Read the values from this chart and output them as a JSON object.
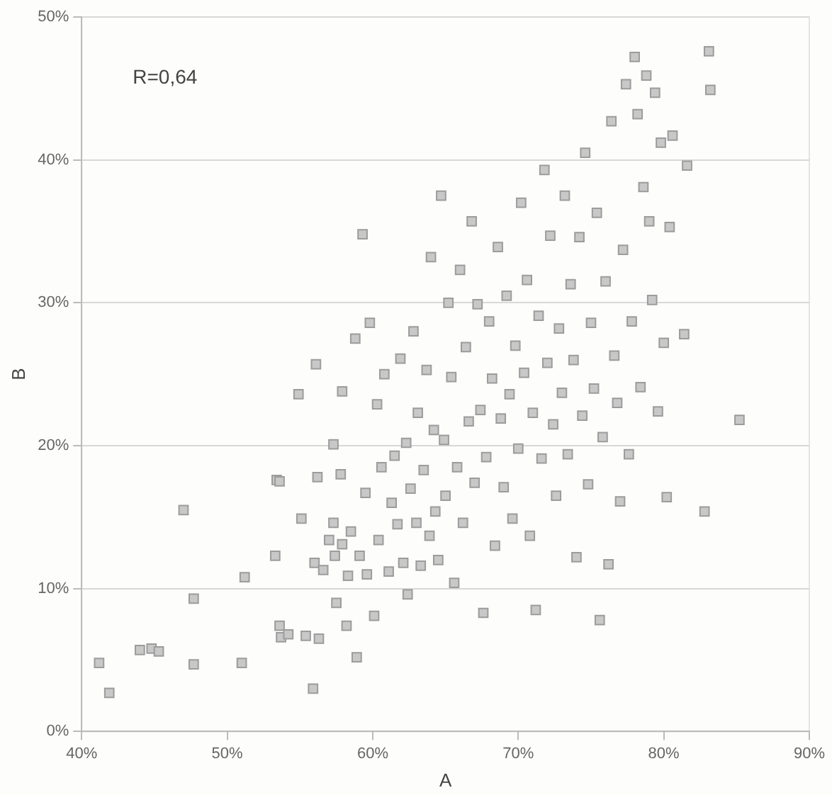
{
  "chart_data": {
    "type": "scatter",
    "xlabel": "A",
    "ylabel": "B",
    "annotations": [
      "R=0,64"
    ],
    "marker": "square",
    "grid": "y",
    "legend": false,
    "xlim": [
      40,
      90
    ],
    "xticks": [
      {
        "value": 40,
        "label": "40%"
      },
      {
        "value": 50,
        "label": "50%"
      },
      {
        "value": 60,
        "label": "60%"
      },
      {
        "value": 70,
        "label": "70%"
      },
      {
        "value": 80,
        "label": "80%"
      },
      {
        "value": 90,
        "label": "90%"
      }
    ],
    "ylim": [
      0,
      50
    ],
    "yticks": [
      {
        "value": 0,
        "label": "0%"
      },
      {
        "value": 10,
        "label": "10%"
      },
      {
        "value": 20,
        "label": "20%"
      },
      {
        "value": 30,
        "label": "30%"
      },
      {
        "value": 40,
        "label": "40%"
      },
      {
        "value": 50,
        "label": "50%"
      }
    ],
    "series": [
      {
        "color": "#c8c8c8",
        "x": [
          41.2,
          41.9,
          44.0,
          44.8,
          45.3,
          47.0,
          47.7,
          47.7,
          51.0,
          51.2,
          53.3,
          53.4,
          53.6,
          53.6,
          53.7,
          54.2,
          54.9,
          55.1,
          55.4,
          55.9,
          56.0,
          56.1,
          56.2,
          56.3,
          56.6,
          57.0,
          57.3,
          57.3,
          57.4,
          57.5,
          57.8,
          57.9,
          57.9,
          58.2,
          58.3,
          58.5,
          58.8,
          58.9,
          59.1,
          59.3,
          59.5,
          59.6,
          59.8,
          60.1,
          60.3,
          60.4,
          60.6,
          60.8,
          61.1,
          61.3,
          61.5,
          61.7,
          61.9,
          62.1,
          62.3,
          62.4,
          62.6,
          62.8,
          63.0,
          63.1,
          63.3,
          63.5,
          63.7,
          63.9,
          64.0,
          64.2,
          64.3,
          64.5,
          64.7,
          64.9,
          65.0,
          65.2,
          65.4,
          65.6,
          65.8,
          66.0,
          66.2,
          66.4,
          66.6,
          66.8,
          67.0,
          67.2,
          67.4,
          67.6,
          67.8,
          68.0,
          68.2,
          68.4,
          68.6,
          68.8,
          69.0,
          69.2,
          69.4,
          69.6,
          69.8,
          70.0,
          70.2,
          70.4,
          70.6,
          70.8,
          71.0,
          71.2,
          71.4,
          71.6,
          71.8,
          72.0,
          72.2,
          72.4,
          72.6,
          72.8,
          73.0,
          73.2,
          73.4,
          73.6,
          73.8,
          74.0,
          74.2,
          74.4,
          74.6,
          74.8,
          75.0,
          75.2,
          75.4,
          75.6,
          75.8,
          76.0,
          76.2,
          76.4,
          76.6,
          76.8,
          77.0,
          77.2,
          77.4,
          77.6,
          77.8,
          78.0,
          78.2,
          78.4,
          78.6,
          78.8,
          79.0,
          79.2,
          79.4,
          79.6,
          79.8,
          80.0,
          80.2,
          80.4,
          80.6,
          81.4,
          81.6,
          82.8,
          83.1,
          83.2,
          85.2
        ],
        "values": [
          4.8,
          2.7,
          5.7,
          5.8,
          5.6,
          15.5,
          9.3,
          4.7,
          4.8,
          10.8,
          12.3,
          17.6,
          17.5,
          7.4,
          6.6,
          6.8,
          23.6,
          14.9,
          6.7,
          3.0,
          11.8,
          25.7,
          17.8,
          6.5,
          11.3,
          13.4,
          20.1,
          14.6,
          12.3,
          9.0,
          18.0,
          13.1,
          23.8,
          7.4,
          10.9,
          14.0,
          27.5,
          5.2,
          12.3,
          34.8,
          16.7,
          11.0,
          28.6,
          8.1,
          22.9,
          13.4,
          18.5,
          25.0,
          11.2,
          16.0,
          19.3,
          14.5,
          26.1,
          11.8,
          20.2,
          9.6,
          17.0,
          28.0,
          14.6,
          22.3,
          11.6,
          18.3,
          25.3,
          13.7,
          33.2,
          21.1,
          15.4,
          12.0,
          37.5,
          20.4,
          16.5,
          30.0,
          24.8,
          10.4,
          18.5,
          32.3,
          14.6,
          26.9,
          21.7,
          35.7,
          17.4,
          29.9,
          22.5,
          8.3,
          19.2,
          28.7,
          24.7,
          13.0,
          33.9,
          21.9,
          17.1,
          30.5,
          23.6,
          14.9,
          27.0,
          19.8,
          37.0,
          25.1,
          31.6,
          13.7,
          22.3,
          8.5,
          29.1,
          19.1,
          39.3,
          25.8,
          34.7,
          21.5,
          16.5,
          28.2,
          23.7,
          37.5,
          19.4,
          31.3,
          26.0,
          12.2,
          34.6,
          22.1,
          40.5,
          17.3,
          28.6,
          24.0,
          36.3,
          7.8,
          20.6,
          31.5,
          11.7,
          42.7,
          26.3,
          23.0,
          16.1,
          33.7,
          45.3,
          19.4,
          28.7,
          47.2,
          43.2,
          24.1,
          38.1,
          45.9,
          35.7,
          30.2,
          44.7,
          22.4,
          41.2,
          27.2,
          16.4,
          35.3,
          41.7,
          27.8,
          39.6,
          15.4,
          47.6,
          44.9,
          21.8
        ]
      }
    ]
  }
}
